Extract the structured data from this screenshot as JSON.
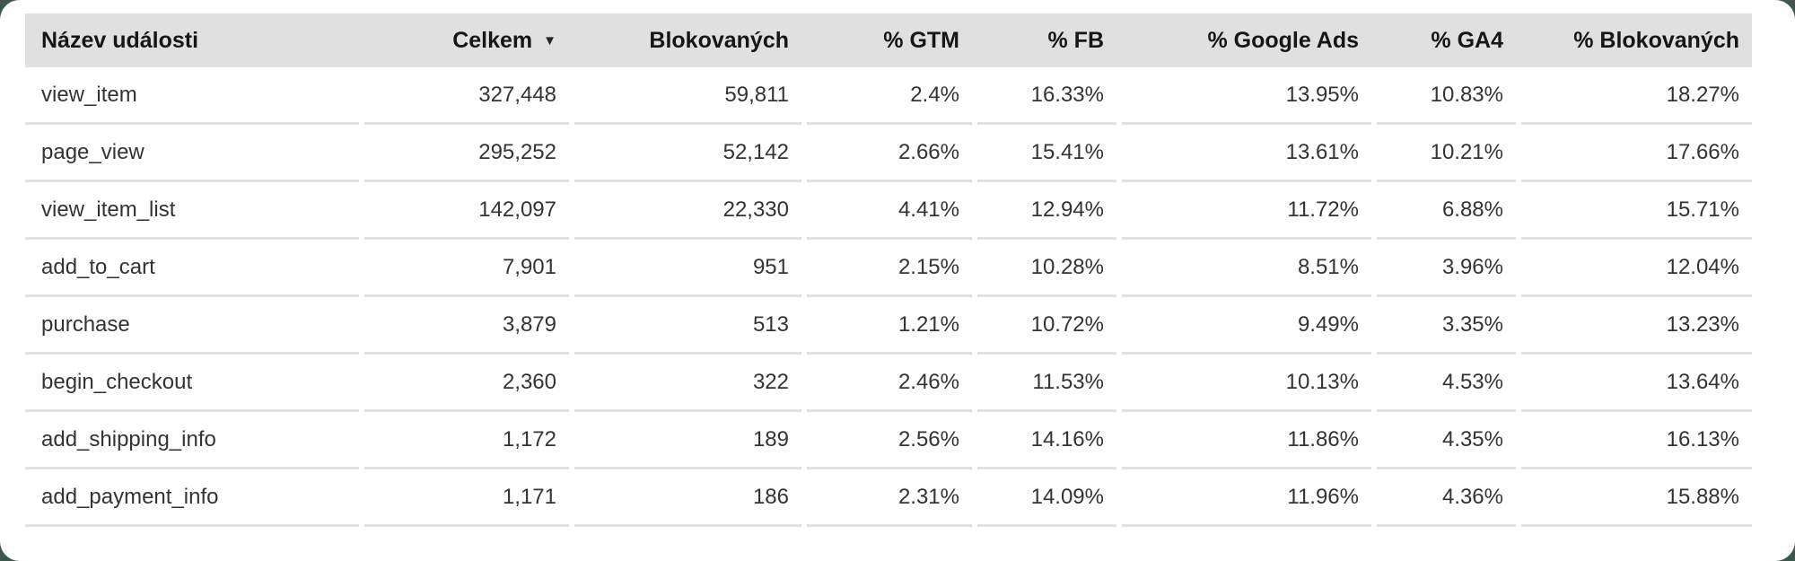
{
  "ui": {
    "sort_icon": "▼",
    "colors": {
      "page_background": "#3c584a",
      "card_background": "#ffffff",
      "header_background": "#e0e0e0",
      "divider": "#e0e0e0",
      "header_text": "#161616",
      "body_text": "#333333"
    }
  },
  "chart_data": {
    "type": "table",
    "sorted_by": {
      "column": "Celkem",
      "direction": "desc"
    },
    "columns": [
      {
        "label": "Název události",
        "align": "left"
      },
      {
        "label": "Celkem",
        "align": "right",
        "sorted": true
      },
      {
        "label": "Blokovaných",
        "align": "right"
      },
      {
        "label": "% GTM",
        "align": "right"
      },
      {
        "label": "% FB",
        "align": "right"
      },
      {
        "label": "% Google Ads",
        "align": "right"
      },
      {
        "label": "% GA4",
        "align": "right"
      },
      {
        "label": "% Blokovaných",
        "align": "right"
      }
    ],
    "rows": [
      {
        "name": "view_item",
        "total": "327,448",
        "blocked": "59,811",
        "gtm": "2.4%",
        "fb": "16.33%",
        "google_ads": "13.95%",
        "ga4": "10.83%",
        "blocked_pct": "18.27%"
      },
      {
        "name": "page_view",
        "total": "295,252",
        "blocked": "52,142",
        "gtm": "2.66%",
        "fb": "15.41%",
        "google_ads": "13.61%",
        "ga4": "10.21%",
        "blocked_pct": "17.66%"
      },
      {
        "name": "view_item_list",
        "total": "142,097",
        "blocked": "22,330",
        "gtm": "4.41%",
        "fb": "12.94%",
        "google_ads": "11.72%",
        "ga4": "6.88%",
        "blocked_pct": "15.71%"
      },
      {
        "name": "add_to_cart",
        "total": "7,901",
        "blocked": "951",
        "gtm": "2.15%",
        "fb": "10.28%",
        "google_ads": "8.51%",
        "ga4": "3.96%",
        "blocked_pct": "12.04%"
      },
      {
        "name": "purchase",
        "total": "3,879",
        "blocked": "513",
        "gtm": "1.21%",
        "fb": "10.72%",
        "google_ads": "9.49%",
        "ga4": "3.35%",
        "blocked_pct": "13.23%"
      },
      {
        "name": "begin_checkout",
        "total": "2,360",
        "blocked": "322",
        "gtm": "2.46%",
        "fb": "11.53%",
        "google_ads": "10.13%",
        "ga4": "4.53%",
        "blocked_pct": "13.64%"
      },
      {
        "name": "add_shipping_info",
        "total": "1,172",
        "blocked": "189",
        "gtm": "2.56%",
        "fb": "14.16%",
        "google_ads": "11.86%",
        "ga4": "4.35%",
        "blocked_pct": "16.13%"
      },
      {
        "name": "add_payment_info",
        "total": "1,171",
        "blocked": "186",
        "gtm": "2.31%",
        "fb": "14.09%",
        "google_ads": "11.96%",
        "ga4": "4.36%",
        "blocked_pct": "15.88%"
      }
    ]
  }
}
